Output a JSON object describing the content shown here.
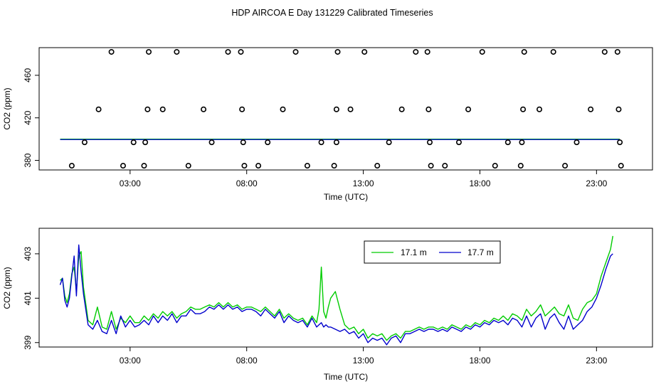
{
  "title": "HDP AIRCOA E  Day 131229  Calibrated Timeseries",
  "colors": {
    "green": "#00cc00",
    "blue": "#0000cc",
    "axis": "#000000"
  },
  "chart_data": [
    {
      "type": "scatter",
      "xlabel": "Time (UTC)",
      "ylabel": "CO2 (ppm)",
      "x_ticks": [
        3,
        8,
        13,
        18,
        23
      ],
      "x_tick_labels": [
        "03:00",
        "08:00",
        "13:00",
        "18:00",
        "23:00"
      ],
      "y_ticks": [
        380,
        420,
        460
      ],
      "y_tick_labels": [
        "380",
        "420",
        "460"
      ],
      "xlim": [
        -0.9,
        25.4
      ],
      "ylim": [
        371,
        486
      ],
      "reference_line_y": 400,
      "points": [
        {
          "x": 0.5,
          "y": 375
        },
        {
          "x": 1.05,
          "y": 397
        },
        {
          "x": 1.65,
          "y": 428
        },
        {
          "x": 2.2,
          "y": 482
        },
        {
          "x": 2.7,
          "y": 375
        },
        {
          "x": 3.15,
          "y": 397
        },
        {
          "x": 3.6,
          "y": 375
        },
        {
          "x": 3.65,
          "y": 397
        },
        {
          "x": 3.75,
          "y": 428
        },
        {
          "x": 3.8,
          "y": 482
        },
        {
          "x": 4.4,
          "y": 428
        },
        {
          "x": 5.0,
          "y": 482
        },
        {
          "x": 5.5,
          "y": 375
        },
        {
          "x": 6.15,
          "y": 428
        },
        {
          "x": 6.5,
          "y": 397
        },
        {
          "x": 7.2,
          "y": 482
        },
        {
          "x": 7.75,
          "y": 482
        },
        {
          "x": 7.8,
          "y": 428
        },
        {
          "x": 7.85,
          "y": 397
        },
        {
          "x": 7.9,
          "y": 375
        },
        {
          "x": 8.5,
          "y": 375
        },
        {
          "x": 8.9,
          "y": 397
        },
        {
          "x": 9.55,
          "y": 428
        },
        {
          "x": 10.1,
          "y": 482
        },
        {
          "x": 10.6,
          "y": 375
        },
        {
          "x": 11.2,
          "y": 397
        },
        {
          "x": 11.75,
          "y": 375
        },
        {
          "x": 11.85,
          "y": 397
        },
        {
          "x": 11.85,
          "y": 428
        },
        {
          "x": 11.9,
          "y": 482
        },
        {
          "x": 12.45,
          "y": 428
        },
        {
          "x": 13.05,
          "y": 482
        },
        {
          "x": 13.6,
          "y": 375
        },
        {
          "x": 14.1,
          "y": 397
        },
        {
          "x": 14.65,
          "y": 428
        },
        {
          "x": 15.25,
          "y": 482
        },
        {
          "x": 15.75,
          "y": 482
        },
        {
          "x": 15.8,
          "y": 428
        },
        {
          "x": 15.85,
          "y": 397
        },
        {
          "x": 15.9,
          "y": 375
        },
        {
          "x": 16.5,
          "y": 375
        },
        {
          "x": 17.1,
          "y": 397
        },
        {
          "x": 17.5,
          "y": 428
        },
        {
          "x": 18.1,
          "y": 482
        },
        {
          "x": 18.65,
          "y": 375
        },
        {
          "x": 19.2,
          "y": 397
        },
        {
          "x": 19.75,
          "y": 375
        },
        {
          "x": 19.8,
          "y": 397
        },
        {
          "x": 19.85,
          "y": 428
        },
        {
          "x": 19.9,
          "y": 482
        },
        {
          "x": 20.55,
          "y": 428
        },
        {
          "x": 21.15,
          "y": 482
        },
        {
          "x": 21.65,
          "y": 375
        },
        {
          "x": 22.15,
          "y": 397
        },
        {
          "x": 22.75,
          "y": 428
        },
        {
          "x": 23.35,
          "y": 482
        },
        {
          "x": 23.9,
          "y": 482
        },
        {
          "x": 23.95,
          "y": 428
        },
        {
          "x": 24.0,
          "y": 397
        },
        {
          "x": 24.05,
          "y": 375
        }
      ]
    },
    {
      "type": "line",
      "xlabel": "Time (UTC)",
      "ylabel": "CO2 (ppm)",
      "x_ticks": [
        3,
        8,
        13,
        18,
        23
      ],
      "x_tick_labels": [
        "03:00",
        "08:00",
        "13:00",
        "18:00",
        "23:00"
      ],
      "y_ticks": [
        399,
        401,
        403
      ],
      "y_tick_labels": [
        "399",
        "401",
        "403"
      ],
      "xlim": [
        -0.9,
        25.4
      ],
      "ylim": [
        398.8,
        404.15
      ],
      "legend": {
        "position": "top-right",
        "entries": [
          "17.1 m",
          "17.7 m"
        ]
      },
      "series": [
        {
          "name": "17.1 m",
          "color": "#00cc00",
          "x": [
            0.0,
            0.1,
            0.2,
            0.3,
            0.4,
            0.5,
            0.6,
            0.7,
            0.8,
            0.9,
            1.0,
            1.2,
            1.4,
            1.6,
            1.8,
            2.0,
            2.2,
            2.4,
            2.6,
            2.8,
            3.0,
            3.2,
            3.4,
            3.6,
            3.8,
            4.0,
            4.2,
            4.4,
            4.6,
            4.8,
            5.0,
            5.2,
            5.4,
            5.6,
            5.8,
            6.0,
            6.2,
            6.4,
            6.6,
            6.8,
            7.0,
            7.2,
            7.4,
            7.6,
            7.8,
            8.0,
            8.2,
            8.4,
            8.6,
            8.8,
            9.0,
            9.2,
            9.4,
            9.6,
            9.8,
            10.0,
            10.2,
            10.4,
            10.6,
            10.8,
            11.0,
            11.1,
            11.2,
            11.3,
            11.4,
            11.5,
            11.6,
            11.8,
            12.0,
            12.2,
            12.4,
            12.6,
            12.8,
            13.0,
            13.2,
            13.4,
            13.6,
            13.8,
            14.0,
            14.2,
            14.4,
            14.6,
            14.8,
            15.0,
            15.2,
            15.4,
            15.6,
            15.8,
            16.0,
            16.2,
            16.4,
            16.6,
            16.8,
            17.0,
            17.2,
            17.4,
            17.6,
            17.8,
            18.0,
            18.2,
            18.4,
            18.6,
            18.8,
            19.0,
            19.2,
            19.4,
            19.6,
            19.8,
            20.0,
            20.2,
            20.4,
            20.6,
            20.8,
            21.0,
            21.2,
            21.4,
            21.6,
            21.8,
            22.0,
            22.2,
            22.4,
            22.6,
            22.8,
            23.0,
            23.2,
            23.4,
            23.6,
            23.7
          ],
          "y": [
            401.8,
            401.9,
            401.1,
            400.8,
            401.2,
            402.1,
            402.4,
            401.3,
            402.9,
            403.1,
            401.5,
            400.0,
            399.8,
            400.6,
            399.7,
            399.6,
            400.4,
            399.6,
            400.1,
            399.9,
            400.2,
            399.9,
            399.9,
            400.2,
            400.0,
            400.3,
            400.1,
            400.4,
            400.2,
            400.4,
            400.1,
            400.3,
            400.4,
            400.6,
            400.5,
            400.5,
            400.6,
            400.7,
            400.6,
            400.8,
            400.6,
            400.8,
            400.6,
            400.7,
            400.5,
            400.6,
            400.6,
            400.5,
            400.4,
            400.6,
            400.4,
            400.2,
            400.5,
            400.1,
            400.3,
            400.1,
            400.0,
            400.1,
            399.8,
            400.2,
            399.9,
            400.5,
            402.4,
            400.4,
            400.1,
            400.6,
            401.0,
            401.3,
            400.5,
            399.8,
            399.6,
            399.7,
            399.4,
            399.6,
            399.2,
            399.4,
            399.3,
            399.4,
            399.1,
            399.3,
            399.4,
            399.2,
            399.5,
            399.5,
            399.6,
            399.7,
            399.6,
            399.7,
            399.7,
            399.6,
            399.7,
            399.6,
            399.8,
            399.7,
            399.6,
            399.8,
            399.7,
            399.9,
            399.8,
            400.0,
            399.9,
            400.1,
            400.0,
            400.2,
            400.0,
            400.3,
            400.2,
            400.0,
            400.5,
            400.2,
            400.4,
            400.7,
            400.2,
            400.4,
            400.6,
            400.3,
            400.2,
            400.7,
            400.1,
            400.0,
            400.5,
            400.8,
            400.9,
            401.2,
            402.0,
            402.6,
            403.2,
            403.8
          ]
        },
        {
          "name": "17.7 m",
          "color": "#0000cc",
          "x": [
            0.0,
            0.1,
            0.2,
            0.3,
            0.4,
            0.5,
            0.6,
            0.7,
            0.8,
            0.9,
            1.0,
            1.2,
            1.4,
            1.6,
            1.8,
            2.0,
            2.2,
            2.4,
            2.6,
            2.8,
            3.0,
            3.2,
            3.4,
            3.6,
            3.8,
            4.0,
            4.2,
            4.4,
            4.6,
            4.8,
            5.0,
            5.2,
            5.4,
            5.6,
            5.8,
            6.0,
            6.2,
            6.4,
            6.6,
            6.8,
            7.0,
            7.2,
            7.4,
            7.6,
            7.8,
            8.0,
            8.2,
            8.4,
            8.6,
            8.8,
            9.0,
            9.2,
            9.4,
            9.6,
            9.8,
            10.0,
            10.2,
            10.4,
            10.6,
            10.8,
            11.0,
            11.1,
            11.2,
            11.3,
            11.4,
            11.5,
            11.6,
            11.8,
            12.0,
            12.2,
            12.4,
            12.6,
            12.8,
            13.0,
            13.2,
            13.4,
            13.6,
            13.8,
            14.0,
            14.2,
            14.4,
            14.6,
            14.8,
            15.0,
            15.2,
            15.4,
            15.6,
            15.8,
            16.0,
            16.2,
            16.4,
            16.6,
            16.8,
            17.0,
            17.2,
            17.4,
            17.6,
            17.8,
            18.0,
            18.2,
            18.4,
            18.6,
            18.8,
            19.0,
            19.2,
            19.4,
            19.6,
            19.8,
            20.0,
            20.2,
            20.4,
            20.6,
            20.8,
            21.0,
            21.2,
            21.4,
            21.6,
            21.8,
            22.0,
            22.2,
            22.4,
            22.6,
            22.8,
            23.0,
            23.2,
            23.4,
            23.6,
            23.7
          ],
          "y": [
            401.6,
            401.9,
            400.9,
            400.6,
            401.0,
            402.0,
            402.9,
            401.1,
            403.4,
            402.2,
            401.2,
            399.8,
            399.6,
            400.0,
            399.5,
            399.4,
            400.0,
            399.4,
            400.2,
            399.7,
            400.0,
            399.7,
            399.8,
            400.0,
            399.8,
            400.2,
            399.9,
            400.2,
            400.0,
            400.3,
            399.9,
            400.2,
            400.2,
            400.5,
            400.3,
            400.3,
            400.4,
            400.6,
            400.5,
            400.7,
            400.5,
            400.7,
            400.5,
            400.6,
            400.4,
            400.5,
            400.5,
            400.4,
            400.2,
            400.5,
            400.3,
            400.1,
            400.4,
            399.9,
            400.2,
            400.0,
            399.9,
            400.0,
            399.7,
            400.1,
            399.7,
            399.8,
            399.9,
            399.7,
            399.8,
            399.7,
            399.7,
            399.6,
            399.5,
            399.6,
            399.4,
            399.5,
            399.2,
            399.4,
            399.0,
            399.2,
            399.1,
            399.2,
            398.9,
            399.2,
            399.3,
            399.0,
            399.4,
            399.4,
            399.5,
            399.6,
            399.5,
            399.6,
            399.6,
            399.5,
            399.6,
            399.5,
            399.7,
            399.6,
            399.5,
            399.7,
            399.6,
            399.8,
            399.7,
            399.9,
            399.8,
            400.0,
            399.9,
            400.0,
            399.8,
            400.1,
            400.0,
            399.7,
            400.2,
            399.7,
            400.1,
            400.3,
            399.6,
            400.1,
            400.3,
            399.9,
            399.6,
            400.2,
            399.6,
            399.8,
            400.0,
            400.4,
            400.6,
            401.0,
            401.6,
            402.3,
            402.9,
            403.0
          ]
        }
      ]
    }
  ]
}
